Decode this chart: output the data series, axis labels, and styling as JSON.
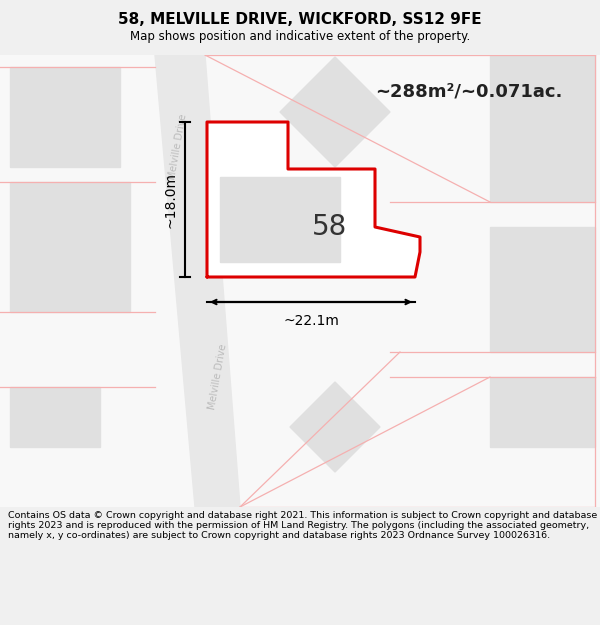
{
  "title": "58, MELVILLE DRIVE, WICKFORD, SS12 9FE",
  "subtitle": "Map shows position and indicative extent of the property.",
  "footer": "Contains OS data © Crown copyright and database right 2021. This information is subject to Crown copyright and database rights 2023 and is reproduced with the permission of HM Land Registry. The polygons (including the associated geometry, namely x, y co-ordinates) are subject to Crown copyright and database rights 2023 Ordnance Survey 100026316.",
  "area_label": "~288m²/~0.071ac.",
  "number_label": "58",
  "width_label": "~22.1m",
  "height_label": "~18.0m",
  "road_label": "Melville Drive",
  "bg_color": "#f0f0f0",
  "map_bg": "#f8f8f8",
  "plot_red": "#dd0000",
  "road_fill": "#e8e8e8",
  "building_fill": "#e0e0e0",
  "boundary_red": "#f5b0b0",
  "dim_line_color": "#000000",
  "text_dark": "#222222",
  "text_gray": "#bbbbbb"
}
